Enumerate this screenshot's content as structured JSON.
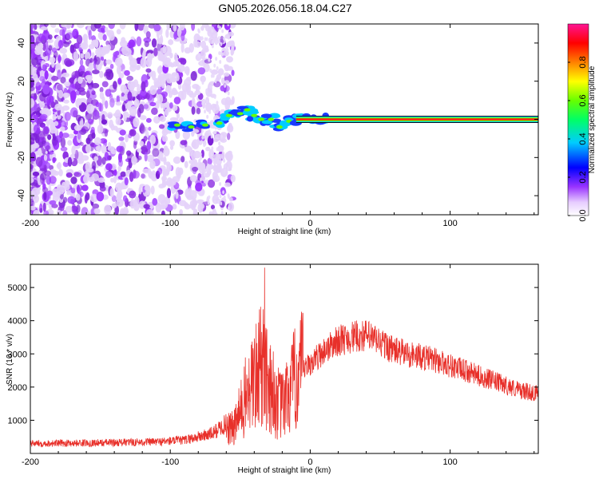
{
  "title": "GN05.2026.056.18.04.C27",
  "colors": {
    "snr_line": "#e8302a",
    "frame": "#000000"
  },
  "chart_data": [
    {
      "type": "heatmap",
      "name": "spectrogram",
      "xlabel": "Height of straight line (km)",
      "ylabel": "Frequency (Hz)",
      "xlim": [
        -200,
        163
      ],
      "ylim": [
        -50,
        50
      ],
      "xticks": [
        -200,
        -100,
        0,
        100
      ],
      "yticks": [
        -40,
        -20,
        0,
        20,
        40
      ],
      "colorbar": {
        "label": "Normalized spectral amplitude",
        "range": [
          0.0,
          1.0
        ],
        "ticks": [
          "0.0",
          "0.2",
          "0.4",
          "0.6",
          "0.8"
        ]
      },
      "features": [
        {
          "description": "broadband noise",
          "x_range": [
            -200,
            -60
          ],
          "y_range": [
            -50,
            50
          ]
        },
        {
          "description": "emerging signal",
          "x_range": [
            -95,
            10
          ],
          "y_range": [
            -8,
            10
          ]
        },
        {
          "description": "stable carrier at 0 Hz",
          "x_range": [
            -10,
            163
          ],
          "freq": 0,
          "amplitude": 1.0
        }
      ]
    },
    {
      "type": "line",
      "name": "snr",
      "xlabel": "Height of straight line (km)",
      "ylabel": "SNR (10 * v/v)",
      "xlim": [
        -200,
        163
      ],
      "ylim": [
        0,
        5700
      ],
      "xticks": [
        -200,
        -100,
        0,
        100
      ],
      "yticks": [
        1000,
        2000,
        3000,
        4000,
        5000
      ],
      "series": [
        {
          "name": "SNR",
          "x": [
            -200,
            -150,
            -110,
            -90,
            -70,
            -60,
            -55,
            -45,
            -40,
            -35,
            -30,
            -25,
            -20,
            -15,
            -10,
            0,
            10,
            20,
            30,
            40,
            50,
            60,
            70,
            80,
            90,
            100,
            110,
            120,
            130,
            140,
            150,
            163
          ],
          "values": [
            300,
            320,
            350,
            400,
            600,
            900,
            700,
            1800,
            2200,
            2600,
            2400,
            1600,
            1400,
            1800,
            2300,
            2700,
            3100,
            3400,
            3500,
            3550,
            3350,
            3100,
            3000,
            2900,
            2800,
            2650,
            2500,
            2350,
            2200,
            2050,
            1900,
            1800
          ]
        }
      ]
    }
  ]
}
